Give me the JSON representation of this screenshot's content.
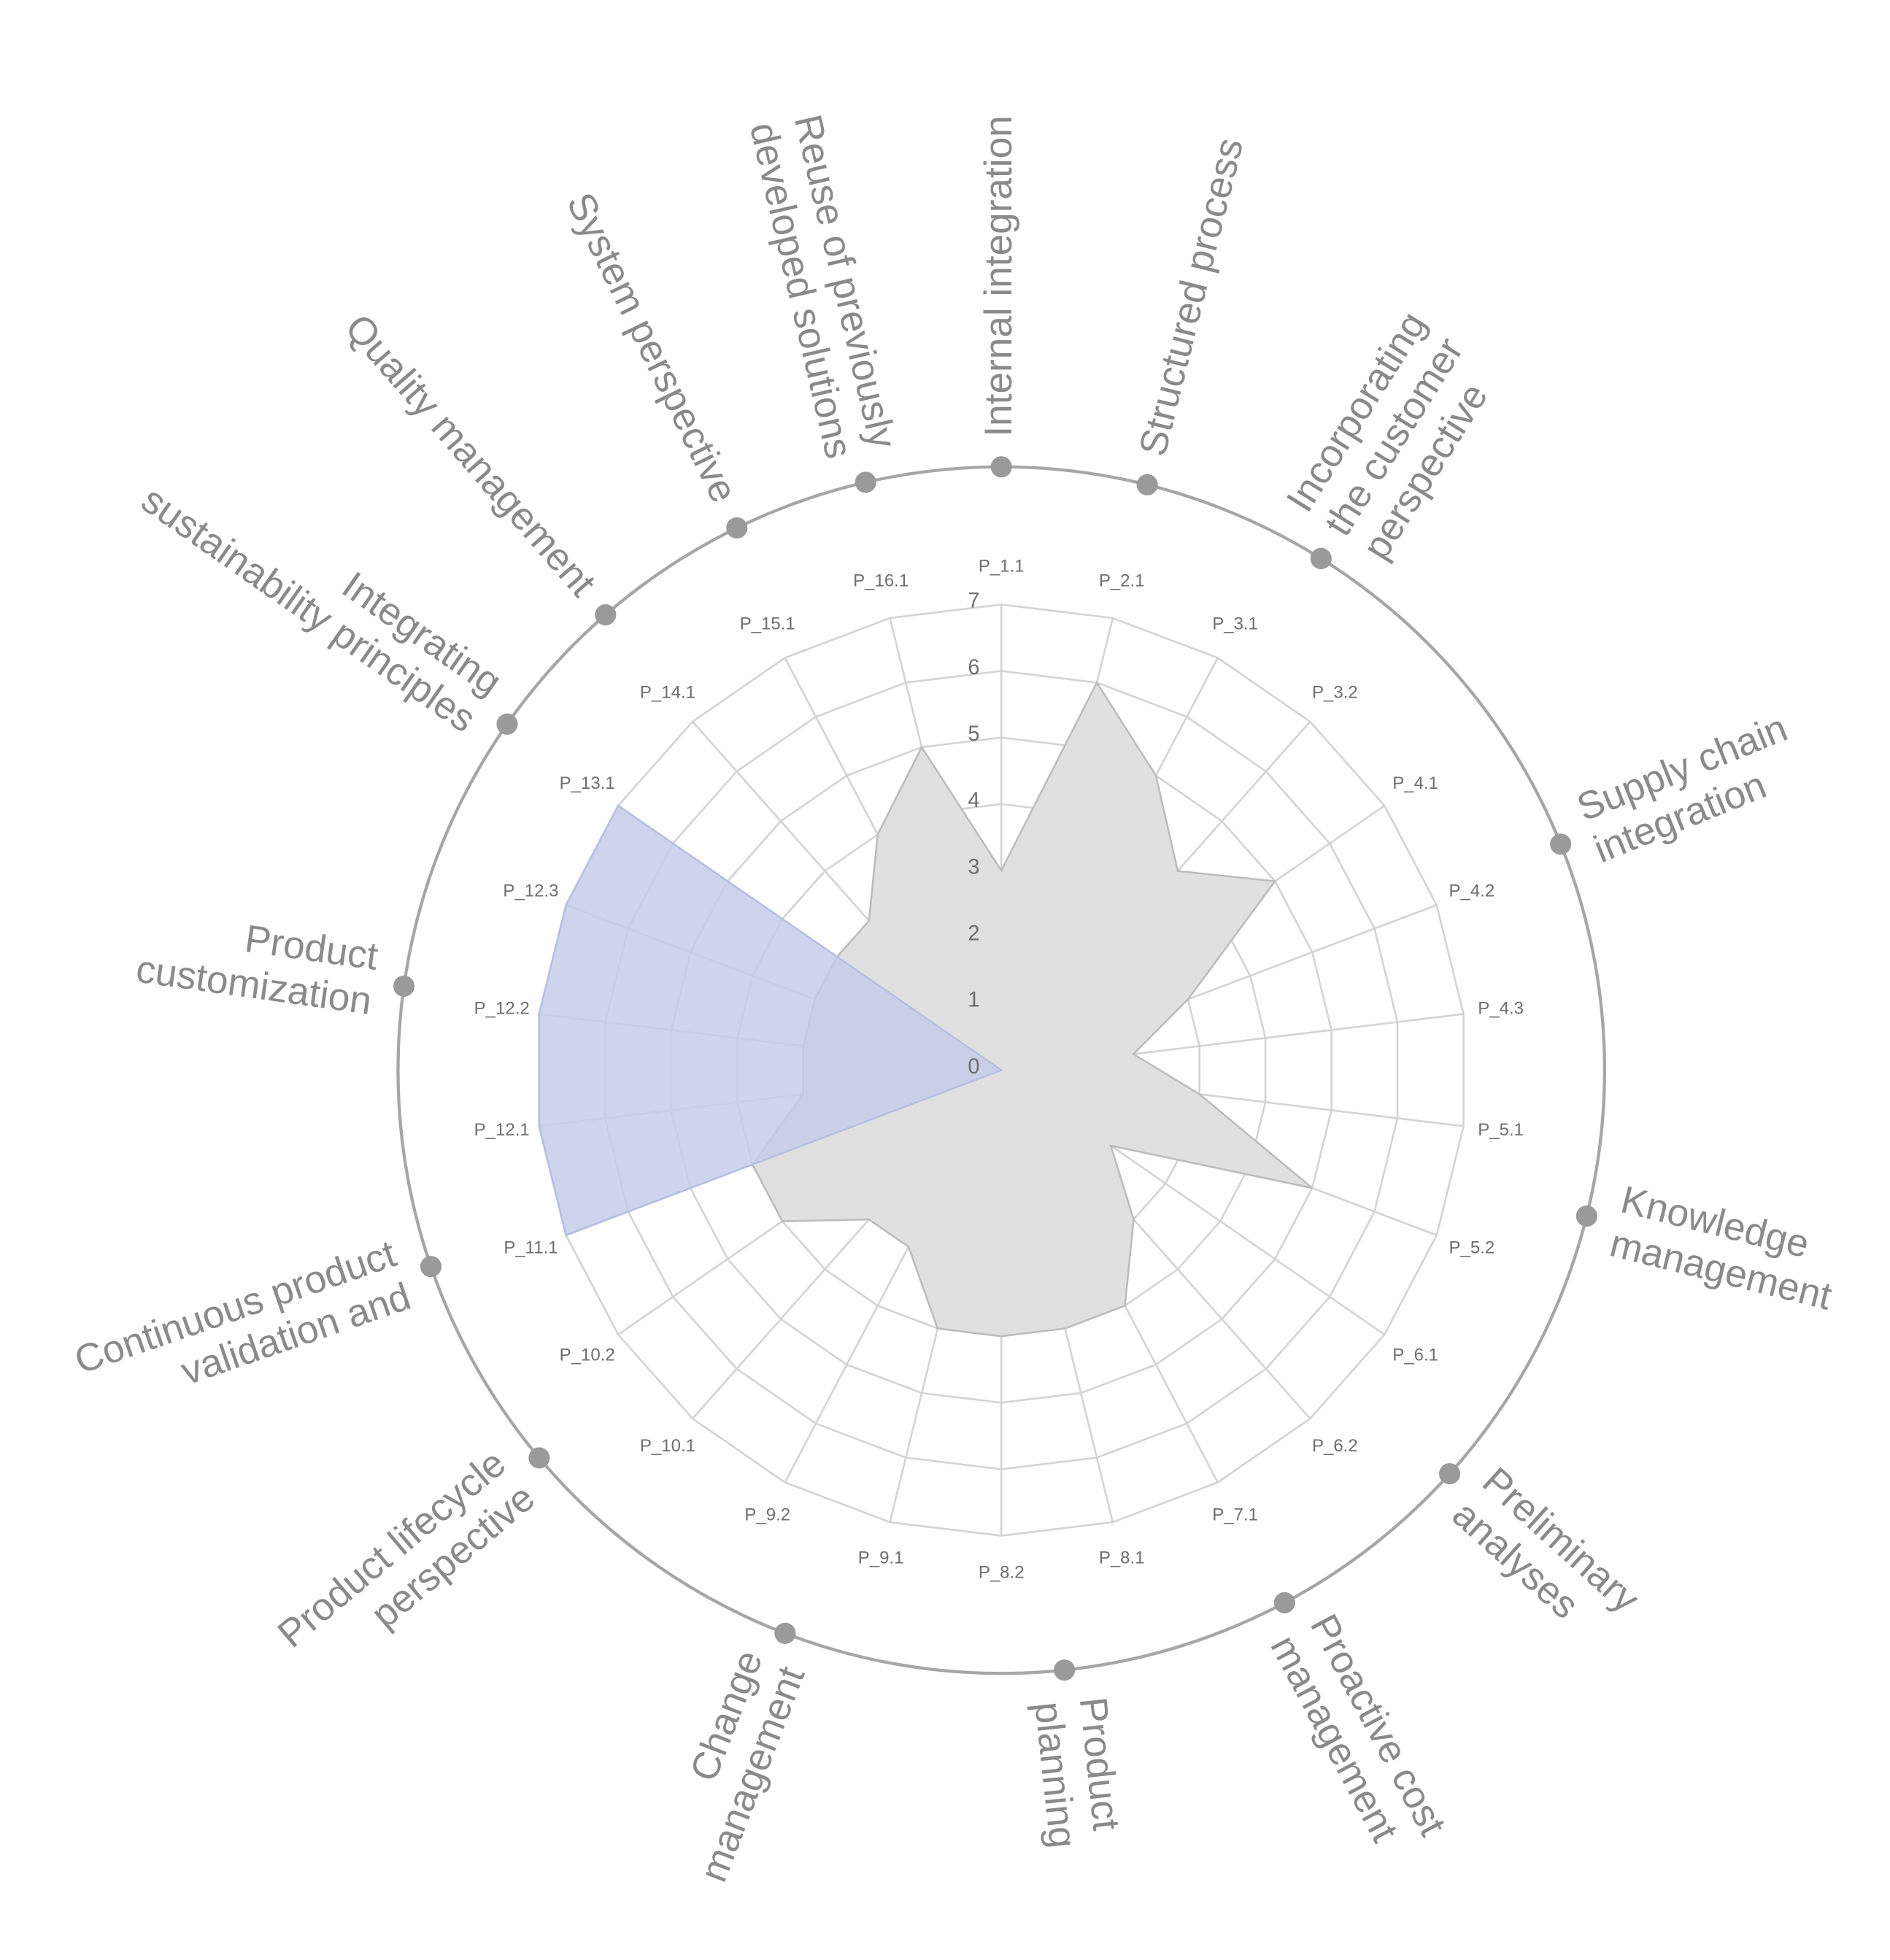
{
  "chart_data": {
    "type": "radar",
    "categories": [
      "P_1.1",
      "P_2.1",
      "P_3.1",
      "P_3.2",
      "P_4.1",
      "P_4.2",
      "P_4.3",
      "P_5.1",
      "P_5.2",
      "P_6.1",
      "P_6.2",
      "P_7.1",
      "P_8.1",
      "P_8.2",
      "P_9.1",
      "P_9.2",
      "P_10.1",
      "P_10.2",
      "P_11.1",
      "P_12.1",
      "P_12.2",
      "P_12.3",
      "P_13.1",
      "P_14.1",
      "P_15.1",
      "P_16.1"
    ],
    "series": [
      {
        "color": "#e0e0e0",
        "values": [
          3,
          6,
          5,
          4,
          5,
          3,
          2,
          3,
          5,
          2,
          3,
          4,
          4,
          4,
          4,
          3,
          3,
          4,
          4,
          3,
          3,
          3,
          3,
          3,
          4,
          5
        ]
      },
      {
        "color": "#c5cde9",
        "values": [
          0,
          0,
          0,
          0,
          0,
          0,
          0,
          0,
          0,
          0,
          0,
          0,
          0,
          0,
          0,
          0,
          0,
          0,
          7,
          7,
          7,
          7,
          7,
          0,
          0,
          0
        ]
      }
    ],
    "ylim": [
      0,
      7
    ],
    "yticks": [
      0,
      1,
      2,
      3,
      4,
      5,
      6,
      7
    ],
    "grid": true,
    "principles": [
      [
        "Internal integration"
      ],
      [
        "Structured process"
      ],
      [
        "Incorporating",
        "the customer",
        "perspective"
      ],
      [
        "Supply chain",
        "integration"
      ],
      [
        "Knowledge",
        "management"
      ],
      [
        "Preliminary",
        "analyses"
      ],
      [
        "Proactive cost",
        "management"
      ],
      [
        "Product",
        "planning"
      ],
      [
        "Change",
        "management"
      ],
      [
        "Product  lifecycle",
        "perspective"
      ],
      [
        "Continuous product",
        "validation and"
      ],
      [
        "Product",
        "customization"
      ],
      [
        "Integrating",
        "sustainability principles"
      ],
      [
        "Quality management"
      ],
      [
        "System perspective"
      ],
      [
        "Reuse of previously",
        "developed solutions"
      ]
    ]
  }
}
